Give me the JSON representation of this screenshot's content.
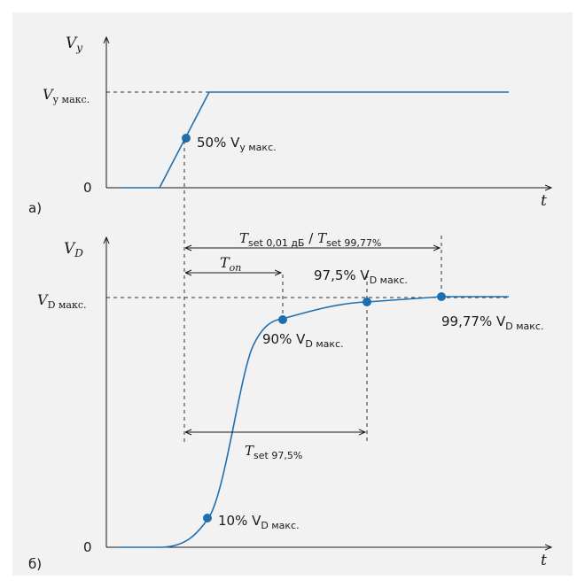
{
  "colors": {
    "curve": "#1f6fb0",
    "background": "#f2f2f2"
  },
  "top": {
    "panel_label": "а)",
    "y_axis": {
      "main": "V",
      "sub": "у"
    },
    "x_axis": "t",
    "zero": "0",
    "level": {
      "main": "V",
      "sub": "у макс."
    },
    "point_label": {
      "pre": "50% V",
      "sub": "у макс."
    }
  },
  "bottom": {
    "panel_label": "б)",
    "y_axis": {
      "main": "V",
      "sub": "D"
    },
    "x_axis": "t",
    "zero": "0",
    "level": {
      "main": "V",
      "sub": "D макс."
    },
    "points": [
      {
        "pre": "10% V",
        "sub": "D макс."
      },
      {
        "pre": "90% V",
        "sub": "D макс."
      },
      {
        "pre": "97,5% V",
        "sub": "D макс."
      },
      {
        "pre": "99,77% V",
        "sub": "D макс."
      }
    ],
    "t_on": {
      "main": "T",
      "sub": "on"
    },
    "t_set_top": {
      "main1": "T",
      "sub1": "set 0,01 дБ",
      "slash": " / ",
      "main2": "T",
      "sub2": "set 99,77%"
    },
    "t_set_975": {
      "main": "T",
      "sub": "set 97,5%"
    }
  }
}
